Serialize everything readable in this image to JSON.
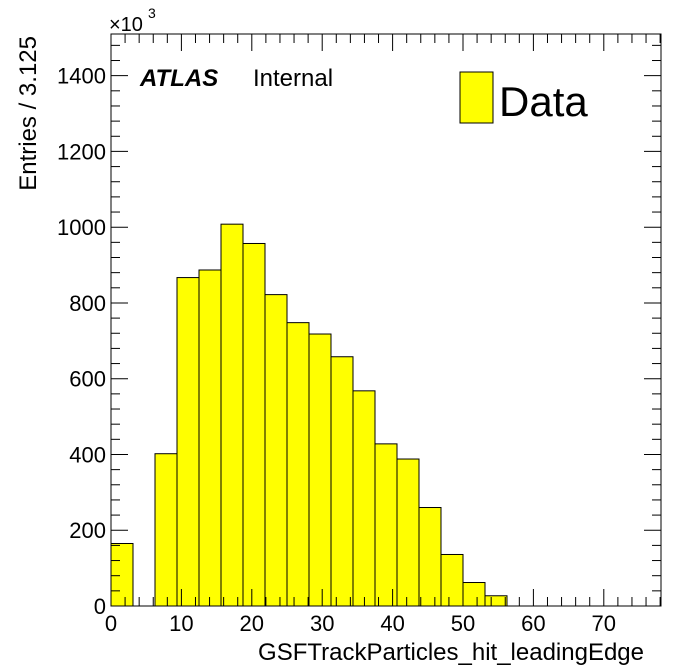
{
  "chart_data": {
    "type": "bar",
    "histogram": true,
    "bin_width": 3.125,
    "bin_edges": [
      0,
      3.125,
      6.25,
      9.375,
      12.5,
      15.625,
      18.75,
      21.875,
      25,
      28.125,
      31.25,
      34.375,
      37.5,
      40.625,
      43.75,
      46.875,
      50,
      53.125,
      56.25,
      59.375,
      62.5,
      65.625,
      68.75,
      71.875,
      75,
      78.125
    ],
    "values": [
      165,
      0,
      402,
      867,
      887,
      1008,
      957,
      822,
      748,
      718,
      658,
      568,
      428,
      388,
      260,
      136,
      62,
      27,
      0,
      0,
      0,
      0,
      0,
      0,
      0
    ],
    "xlim": [
      0,
      78.125
    ],
    "ylim": [
      0,
      1510
    ],
    "xticks": [
      0,
      10,
      20,
      30,
      40,
      50,
      60,
      70
    ],
    "yticks": [
      0,
      200,
      400,
      600,
      800,
      1000,
      1200,
      1400
    ],
    "xlabel": "GSFTrackParticles_hit_leadingEdge",
    "ylabel": "Entries / 3.125",
    "y_multiplier": "×10",
    "y_multiplier_exp": "3",
    "fill_color": "#ffff00",
    "edge_color": "#000000",
    "legend": {
      "label": "Data",
      "position": "top-right"
    },
    "annotation": {
      "bold": "ATLAS",
      "text": "Internal"
    }
  }
}
